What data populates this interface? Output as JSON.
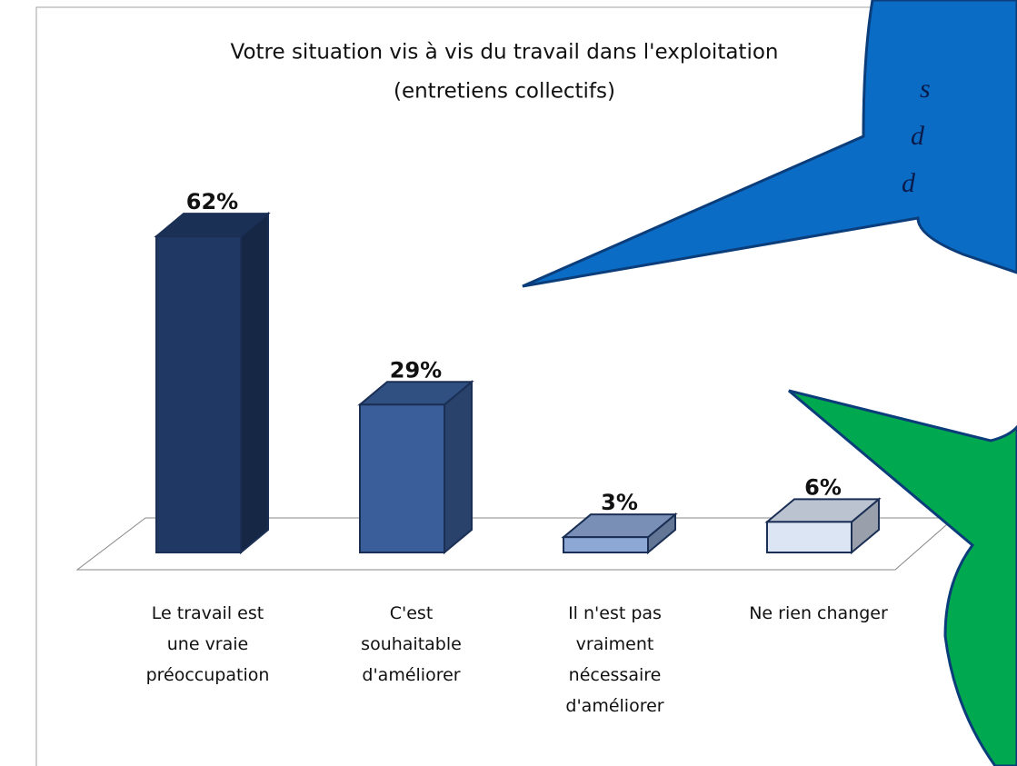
{
  "chart_data": {
    "type": "bar3d",
    "title": "Votre situation vis à vis du travail dans l'exploitation",
    "subtitle": "(entretiens collectifs)",
    "categories": [
      "Le travail est une vraie préoccupation",
      "C'est souhaitable d'améliorer",
      "Il n'est pas vraiment nécessaire d'améliorer",
      "Ne rien changer"
    ],
    "values": [
      62,
      29,
      3,
      6
    ],
    "value_labels": [
      "62%",
      "29%",
      "3%",
      "6%"
    ],
    "colors": [
      "#1f3864",
      "#3a5e99",
      "#8ea8d6",
      "#dbe5f4"
    ],
    "annotations": [
      "s",
      "d",
      "d"
    ]
  }
}
